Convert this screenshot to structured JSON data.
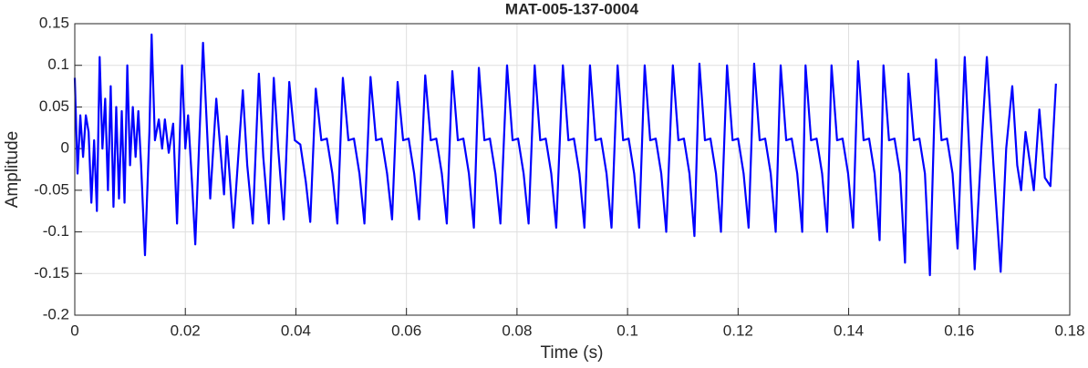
{
  "chart_data": {
    "type": "line",
    "title": "MAT-005-137-0004",
    "xlabel": "Time (s)",
    "ylabel": "Amplitude",
    "x": [
      0,
      0.0005,
      0.001,
      0.0015,
      0.002,
      0.0025,
      0.003,
      0.0035,
      0.004,
      0.0045,
      0.005,
      0.0055,
      0.006,
      0.0065,
      0.007,
      0.0075,
      0.008,
      0.0085,
      0.009,
      0.0095,
      0.01,
      0.0105,
      0.011,
      0.0115,
      0.012,
      0.0127,
      0.0135,
      0.0139,
      0.0145,
      0.0152,
      0.0158,
      0.0163,
      0.017,
      0.0178,
      0.0185,
      0.0194,
      0.02,
      0.0205,
      0.0212,
      0.0218,
      0.0232,
      0.0245,
      0.0256,
      0.027,
      0.0275,
      0.0287,
      0.0304,
      0.0312,
      0.0322,
      0.0333,
      0.0341,
      0.0351,
      0.036,
      0.0368,
      0.0378,
      0.0388,
      0.0398,
      0.0408,
      0.0418,
      0.0426,
      0.0436,
      0.0446,
      0.0456,
      0.0466,
      0.0475,
      0.0485,
      0.0495,
      0.0505,
      0.0515,
      0.0524,
      0.0535,
      0.0545,
      0.0555,
      0.0565,
      0.0574,
      0.0584,
      0.0594,
      0.0604,
      0.0614,
      0.0623,
      0.0634,
      0.0644,
      0.0654,
      0.0664,
      0.0673,
      0.0683,
      0.0693,
      0.0703,
      0.0713,
      0.0722,
      0.0731,
      0.0741,
      0.0751,
      0.0761,
      0.077,
      0.0782,
      0.0792,
      0.0802,
      0.0812,
      0.0821,
      0.0832,
      0.0842,
      0.0852,
      0.0862,
      0.0871,
      0.0883,
      0.0893,
      0.0903,
      0.0913,
      0.0922,
      0.0932,
      0.0942,
      0.0952,
      0.0962,
      0.0971,
      0.0982,
      0.0992,
      0.1002,
      0.1012,
      0.1021,
      0.1031,
      0.1041,
      0.1051,
      0.1061,
      0.107,
      0.1082,
      0.1092,
      0.1102,
      0.1112,
      0.1121,
      0.113,
      0.114,
      0.115,
      0.116,
      0.1169,
      0.118,
      0.119,
      0.12,
      0.121,
      0.1219,
      0.1229,
      0.1239,
      0.1249,
      0.1259,
      0.1268,
      0.1277,
      0.1287,
      0.1297,
      0.1307,
      0.1316,
      0.1322,
      0.1332,
      0.1342,
      0.1352,
      0.1361,
      0.1369,
      0.1379,
      0.1389,
      0.1399,
      0.1408,
      0.1417,
      0.1427,
      0.1437,
      0.1447,
      0.1456,
      0.1463,
      0.1473,
      0.1483,
      0.1493,
      0.1502,
      0.1508,
      0.1518,
      0.1528,
      0.1538,
      0.1547,
      0.1558,
      0.1568,
      0.1578,
      0.1588,
      0.1597,
      0.161,
      0.1618,
      0.1628,
      0.164,
      0.165,
      0.1662,
      0.1675,
      0.1685,
      0.1696,
      0.1705,
      0.1712,
      0.172,
      0.1735,
      0.1745,
      0.1755,
      0.1765,
      0.1775
    ],
    "series": [
      {
        "color": "#0000ff",
        "values": [
          0.085,
          -0.03,
          0.04,
          -0.01,
          0.04,
          0.02,
          -0.065,
          0.01,
          -0.075,
          0.11,
          0.0,
          0.06,
          -0.05,
          0.075,
          -0.07,
          0.05,
          -0.06,
          0.045,
          -0.065,
          0.1,
          -0.02,
          0.05,
          -0.01,
          0.045,
          -0.02,
          -0.128,
          0.02,
          0.137,
          0.01,
          0.035,
          0.0,
          0.035,
          -0.005,
          0.03,
          -0.09,
          0.1,
          0.0,
          0.04,
          -0.04,
          -0.115,
          0.127,
          -0.06,
          0.06,
          -0.055,
          0.015,
          -0.095,
          0.07,
          -0.02,
          -0.09,
          0.09,
          -0.01,
          -0.09,
          0.085,
          0.0,
          -0.085,
          0.08,
          0.01,
          0.005,
          -0.04,
          -0.088,
          0.072,
          0.01,
          0.012,
          -0.03,
          -0.09,
          0.085,
          0.01,
          0.012,
          -0.03,
          -0.09,
          0.086,
          0.01,
          0.012,
          -0.03,
          -0.085,
          0.08,
          0.01,
          0.012,
          -0.03,
          -0.085,
          0.088,
          0.01,
          0.012,
          -0.03,
          -0.09,
          0.093,
          0.01,
          0.012,
          -0.03,
          -0.095,
          0.097,
          0.01,
          0.012,
          -0.03,
          -0.09,
          0.1,
          0.01,
          0.012,
          -0.03,
          -0.09,
          0.1,
          0.01,
          0.012,
          -0.03,
          -0.095,
          0.1,
          0.01,
          0.012,
          -0.03,
          -0.095,
          0.1,
          0.01,
          0.012,
          -0.03,
          -0.095,
          0.1,
          0.01,
          0.012,
          -0.03,
          -0.095,
          0.1,
          0.01,
          0.012,
          -0.03,
          -0.1,
          0.1,
          0.01,
          0.012,
          -0.03,
          -0.105,
          0.102,
          0.01,
          0.012,
          -0.03,
          -0.1,
          0.1,
          0.01,
          0.012,
          -0.03,
          -0.095,
          0.102,
          0.01,
          0.012,
          -0.03,
          -0.1,
          0.1,
          0.01,
          0.012,
          -0.03,
          -0.1,
          0.1,
          0.01,
          0.012,
          -0.03,
          -0.1,
          0.1,
          0.01,
          0.012,
          -0.03,
          -0.095,
          0.105,
          0.01,
          0.012,
          -0.03,
          -0.11,
          0.1,
          0.01,
          0.012,
          -0.03,
          -0.137,
          0.09,
          0.01,
          0.012,
          -0.03,
          -0.152,
          0.107,
          0.01,
          0.012,
          -0.03,
          -0.12,
          0.11,
          0.0,
          -0.145,
          0.0,
          0.11,
          -0.02,
          -0.148,
          0.0,
          0.075,
          -0.02,
          -0.05,
          0.02,
          -0.05,
          0.047,
          -0.035,
          -0.045,
          0.078
        ]
      }
    ],
    "xlim": [
      0,
      0.18
    ],
    "xticks": [
      0,
      0.02,
      0.04,
      0.06,
      0.08,
      0.1,
      0.12,
      0.14,
      0.16,
      0.18
    ],
    "ylim": [
      -0.2,
      0.15
    ],
    "yticks": [
      -0.2,
      -0.15,
      -0.1,
      -0.05,
      0,
      0.05,
      0.1,
      0.15
    ],
    "grid": true
  }
}
